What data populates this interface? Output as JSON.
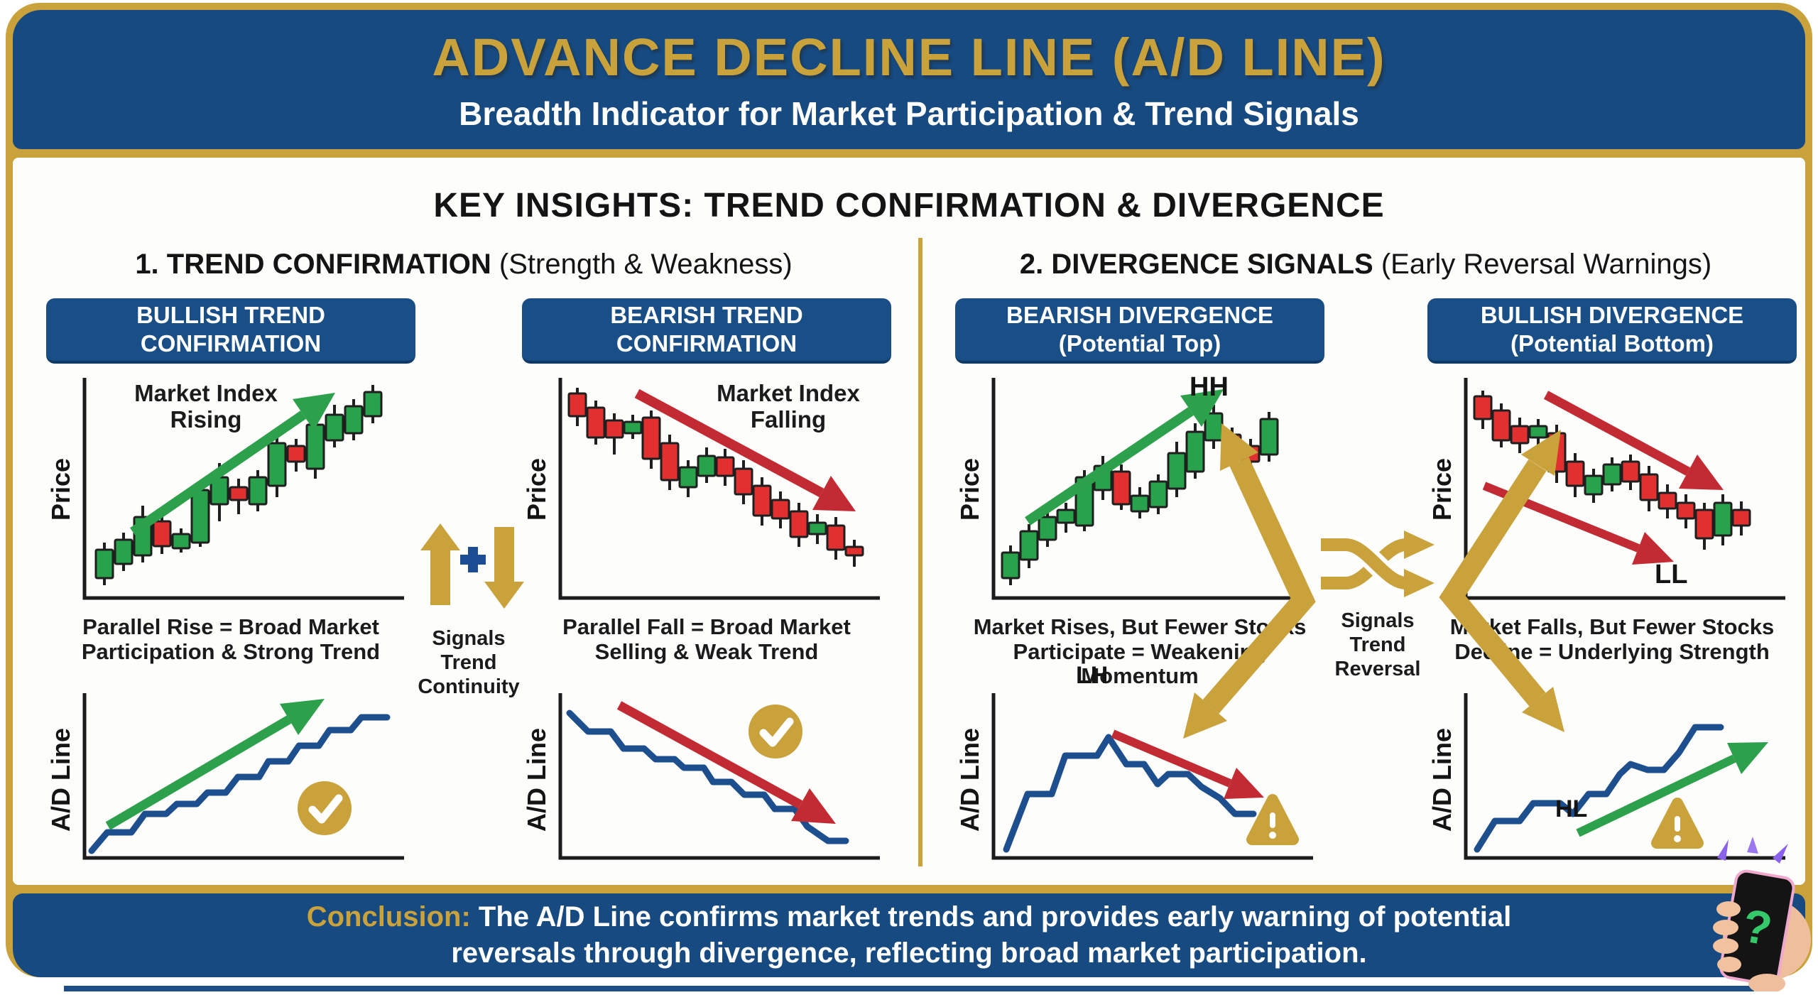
{
  "colors": {
    "gold": "#C9A23C",
    "header_blue": "#164A80",
    "badge_blue": "#1A4E86",
    "candle_green": "#28A24B",
    "candle_red": "#E23030",
    "arrow_green": "#2DA04C",
    "arrow_red": "#C22B33",
    "ad_line_blue": "#1D4F8E",
    "text_dark": "#141414"
  },
  "header": {
    "title": "ADVANCE DECLINE LINE (A/D LINE)",
    "subtitle": "Breadth Indicator for Market Participation & Trend Signals"
  },
  "key_insights": "KEY INSIGHTS: TREND CONFIRMATION & DIVERGENCE",
  "sections": [
    {
      "number_title": "1. TREND CONFIRMATION",
      "subtitle": " (Strength & Weakness)"
    },
    {
      "number_title": "2. DIVERGENCE SIGNALS",
      "subtitle": " (Early Reversal Warnings)"
    }
  ],
  "connectors": {
    "continuity": "Signals Trend Continuity",
    "reversal": "Signals Trend Reversal"
  },
  "panels": [
    {
      "badge": "BULLISH TREND CONFIRMATION",
      "price_axis": "Price",
      "annotation": "Market Index Rising",
      "caption": "Parallel Rise = Broad Market Participation & Strong Trend",
      "ad_axis": "A/D Line",
      "candles": [
        [
          40,
          240,
          250,
          290,
          300,
          "g"
        ],
        [
          67,
          226,
          236,
          270,
          280,
          "g"
        ],
        [
          94,
          188,
          204,
          258,
          268,
          "g"
        ],
        [
          121,
          198,
          210,
          245,
          256,
          "r"
        ],
        [
          148,
          220,
          228,
          248,
          254,
          "g"
        ],
        [
          175,
          156,
          166,
          240,
          246,
          "g"
        ],
        [
          202,
          128,
          148,
          186,
          210,
          "g"
        ],
        [
          229,
          150,
          162,
          180,
          200,
          "r"
        ],
        [
          256,
          138,
          148,
          186,
          196,
          "g"
        ],
        [
          283,
          80,
          100,
          160,
          176,
          "g"
        ],
        [
          310,
          94,
          104,
          126,
          140,
          "r"
        ],
        [
          337,
          58,
          74,
          136,
          150,
          "g"
        ],
        [
          364,
          46,
          60,
          96,
          106,
          "g"
        ],
        [
          391,
          38,
          48,
          86,
          96,
          "g"
        ],
        [
          418,
          18,
          28,
          62,
          72,
          "g"
        ]
      ],
      "ad_points": [
        [
          22,
          230
        ],
        [
          44,
          204
        ],
        [
          78,
          204
        ],
        [
          97,
          178
        ],
        [
          127,
          178
        ],
        [
          142,
          164
        ],
        [
          170,
          164
        ],
        [
          185,
          148
        ],
        [
          211,
          148
        ],
        [
          228,
          126
        ],
        [
          258,
          126
        ],
        [
          271,
          104
        ],
        [
          299,
          104
        ],
        [
          314,
          82
        ],
        [
          342,
          82
        ],
        [
          357,
          60
        ],
        [
          387,
          60
        ],
        [
          402,
          42
        ],
        [
          438,
          42
        ]
      ]
    },
    {
      "badge": "BEARISH TREND CONFIRMATION",
      "price_axis": "Price",
      "annotation": "Market Index Falling",
      "caption": "Parallel Fall = Broad Market Selling & Weak Trend",
      "ad_axis": "A/D Line",
      "candles": [
        [
          36,
          22,
          30,
          62,
          76,
          "r"
        ],
        [
          62,
          40,
          50,
          92,
          102,
          "r"
        ],
        [
          88,
          58,
          68,
          92,
          116,
          "r"
        ],
        [
          114,
          60,
          70,
          86,
          94,
          "g"
        ],
        [
          140,
          54,
          64,
          122,
          136,
          "r"
        ],
        [
          166,
          88,
          100,
          152,
          166,
          "r"
        ],
        [
          192,
          124,
          134,
          162,
          176,
          "g"
        ],
        [
          218,
          106,
          118,
          146,
          156,
          "g"
        ],
        [
          244,
          108,
          120,
          146,
          160,
          "r"
        ],
        [
          270,
          124,
          136,
          172,
          186,
          "r"
        ],
        [
          296,
          148,
          160,
          202,
          216,
          "r"
        ],
        [
          322,
          168,
          180,
          206,
          220,
          "r"
        ],
        [
          348,
          184,
          196,
          232,
          246,
          "r"
        ],
        [
          374,
          200,
          212,
          228,
          242,
          "g"
        ],
        [
          400,
          204,
          216,
          250,
          264,
          "r"
        ],
        [
          426,
          236,
          246,
          258,
          274,
          "r"
        ]
      ],
      "ad_points": [
        [
          25,
          36
        ],
        [
          51,
          62
        ],
        [
          83,
          62
        ],
        [
          101,
          86
        ],
        [
          130,
          86
        ],
        [
          146,
          101
        ],
        [
          173,
          101
        ],
        [
          186,
          113
        ],
        [
          214,
          113
        ],
        [
          227,
          133
        ],
        [
          253,
          133
        ],
        [
          271,
          151
        ],
        [
          299,
          151
        ],
        [
          314,
          171
        ],
        [
          342,
          171
        ],
        [
          360,
          196
        ],
        [
          389,
          216
        ],
        [
          414,
          216
        ]
      ]
    },
    {
      "badge": "BEARISH DIVERGENCE (Potential Top)",
      "price_axis": "Price",
      "chart_label": "HH",
      "caption": "Market Rises, But Fewer Stocks Participate = Weakening Momentum",
      "ad_axis": "A/D Line",
      "ad_chart_label": "LH",
      "candles": [
        [
          36,
          244,
          254,
          290,
          300,
          "g"
        ],
        [
          62,
          214,
          224,
          264,
          276,
          "g"
        ],
        [
          88,
          194,
          204,
          236,
          246,
          "g"
        ],
        [
          114,
          184,
          194,
          212,
          226,
          "g"
        ],
        [
          140,
          138,
          148,
          216,
          224,
          "g"
        ],
        [
          166,
          118,
          132,
          166,
          180,
          "g"
        ],
        [
          192,
          130,
          140,
          186,
          194,
          "r"
        ],
        [
          218,
          162,
          174,
          196,
          206,
          "g"
        ],
        [
          244,
          144,
          154,
          190,
          200,
          "g"
        ],
        [
          270,
          98,
          114,
          164,
          176,
          "g"
        ],
        [
          296,
          72,
          84,
          140,
          150,
          "g"
        ],
        [
          322,
          46,
          58,
          96,
          108,
          "g"
        ],
        [
          348,
          78,
          88,
          112,
          124,
          "r"
        ],
        [
          374,
          94,
          104,
          126,
          140,
          "r"
        ],
        [
          400,
          56,
          66,
          116,
          126,
          "g"
        ]
      ],
      "ad_points": [
        [
          30,
          228
        ],
        [
          60,
          150
        ],
        [
          94,
          150
        ],
        [
          113,
          96
        ],
        [
          158,
          96
        ],
        [
          174,
          70
        ],
        [
          199,
          108
        ],
        [
          224,
          108
        ],
        [
          243,
          136
        ],
        [
          258,
          122
        ],
        [
          286,
          122
        ],
        [
          305,
          140
        ],
        [
          331,
          156
        ],
        [
          352,
          178
        ],
        [
          378,
          178
        ]
      ]
    },
    {
      "badge": "BULLISH DIVERGENCE (Potential Bottom)",
      "price_axis": "Price",
      "chart_label": "LL",
      "caption": "Market Falls, But Fewer Stocks Decline = Underlying Strength",
      "ad_axis": "A/D Line",
      "ad_chart_label": "HL",
      "candles": [
        [
          36,
          26,
          34,
          66,
          80,
          "r"
        ],
        [
          62,
          44,
          54,
          96,
          106,
          "r"
        ],
        [
          88,
          64,
          76,
          100,
          114,
          "r"
        ],
        [
          114,
          66,
          76,
          92,
          120,
          "g"
        ],
        [
          140,
          74,
          86,
          140,
          156,
          "r"
        ],
        [
          166,
          114,
          126,
          160,
          176,
          "r"
        ],
        [
          192,
          136,
          146,
          172,
          184,
          "g"
        ],
        [
          218,
          120,
          130,
          158,
          168,
          "g"
        ],
        [
          244,
          116,
          126,
          154,
          166,
          "r"
        ],
        [
          270,
          132,
          144,
          180,
          196,
          "r"
        ],
        [
          296,
          158,
          170,
          192,
          206,
          "r"
        ],
        [
          322,
          172,
          184,
          206,
          220,
          "r"
        ],
        [
          348,
          184,
          194,
          234,
          250,
          "r"
        ],
        [
          374,
          172,
          184,
          230,
          244,
          "g"
        ],
        [
          400,
          182,
          194,
          216,
          230,
          "r"
        ]
      ],
      "ad_points": [
        [
          28,
          228
        ],
        [
          53,
          188
        ],
        [
          88,
          188
        ],
        [
          107,
          163
        ],
        [
          145,
          163
        ],
        [
          163,
          178
        ],
        [
          185,
          150
        ],
        [
          210,
          150
        ],
        [
          229,
          122
        ],
        [
          244,
          108
        ],
        [
          268,
          116
        ],
        [
          291,
          116
        ],
        [
          312,
          92
        ],
        [
          335,
          56
        ],
        [
          371,
          56
        ]
      ]
    }
  ],
  "footer": {
    "conclusion_label": "Conclusion:",
    "conclusion_text": "The A/D Line confirms market trends and provides early warning of potential reversals through divergence, reflecting broad market participation."
  }
}
